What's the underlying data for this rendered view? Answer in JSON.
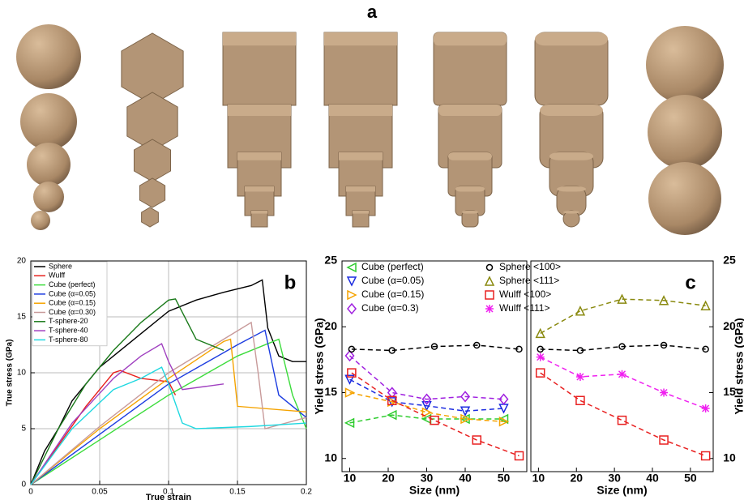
{
  "panel_a": {
    "label": "a"
  },
  "chart_data": [
    {
      "type": "line",
      "label": "b",
      "x_label": "True strain",
      "y_label": "True stress (GPa)",
      "xlim": [
        0,
        0.2
      ],
      "ylim": [
        0,
        20
      ],
      "xticks": [
        0,
        0.05,
        0.1,
        0.15,
        0.2
      ],
      "yticks": [
        0,
        5,
        10,
        15,
        20
      ],
      "grid": true,
      "legend": "upper-left",
      "series": [
        {
          "name": "Sphere",
          "color": "#000000",
          "x": [
            0,
            0.01,
            0.02,
            0.03,
            0.04,
            0.05,
            0.06,
            0.08,
            0.1,
            0.12,
            0.14,
            0.16,
            0.168,
            0.172,
            0.18,
            0.19,
            0.2
          ],
          "values": [
            0,
            3,
            5,
            7.5,
            9,
            10.5,
            11.5,
            13.5,
            15.5,
            16.5,
            17.2,
            17.8,
            18.3,
            14,
            11.5,
            11,
            11
          ]
        },
        {
          "name": "Wulff",
          "color": "#e8201c",
          "x": [
            0,
            0.02,
            0.04,
            0.06,
            0.065,
            0.08,
            0.1,
            0.105
          ],
          "values": [
            0,
            3.5,
            7,
            10,
            10.2,
            9.5,
            9.2,
            8
          ]
        },
        {
          "name": "Cube (perfect)",
          "color": "#3cdc3c",
          "x": [
            0,
            0.05,
            0.1,
            0.15,
            0.18,
            0.19,
            0.2
          ],
          "values": [
            0,
            4,
            8,
            11.5,
            13,
            8,
            5
          ]
        },
        {
          "name": "Cube (α=0.05)",
          "color": "#1c3ce0",
          "x": [
            0,
            0.05,
            0.1,
            0.15,
            0.17,
            0.18,
            0.2
          ],
          "values": [
            0,
            4.5,
            9,
            12.5,
            13.8,
            8,
            6
          ]
        },
        {
          "name": "Cube (α=0.15)",
          "color": "#f5a300",
          "x": [
            0,
            0.05,
            0.1,
            0.14,
            0.145,
            0.15,
            0.2
          ],
          "values": [
            0,
            5,
            9.5,
            12.8,
            13,
            7,
            6.5
          ]
        },
        {
          "name": "Cube (α=0.30)",
          "color": "#c89a9a",
          "x": [
            0,
            0.05,
            0.1,
            0.16,
            0.165,
            0.17,
            0.2
          ],
          "values": [
            0,
            5.2,
            10,
            14.5,
            10,
            5,
            6
          ]
        },
        {
          "name": "T-sphere-20",
          "color": "#1a7a1a",
          "x": [
            0,
            0.02,
            0.04,
            0.06,
            0.08,
            0.1,
            0.105,
            0.12,
            0.14
          ],
          "values": [
            0,
            5,
            9,
            12,
            14.5,
            16.5,
            16.6,
            13,
            12
          ]
        },
        {
          "name": "T-sphere-40",
          "color": "#a040c0",
          "x": [
            0,
            0.03,
            0.06,
            0.08,
            0.095,
            0.1,
            0.11,
            0.14
          ],
          "values": [
            0,
            5.5,
            9.5,
            11.5,
            12.6,
            11,
            8.5,
            9
          ]
        },
        {
          "name": "T-sphere-80",
          "color": "#20d8e0",
          "x": [
            0,
            0.03,
            0.06,
            0.08,
            0.095,
            0.1,
            0.11,
            0.12,
            0.16,
            0.2
          ],
          "values": [
            0,
            5,
            8.5,
            9.5,
            10.5,
            9,
            5.5,
            5,
            5.2,
            5.5
          ]
        }
      ]
    },
    {
      "type": "line",
      "x_label": "Size (nm)",
      "y_label": "Yield stress (GPa)",
      "y_side": "left",
      "xlim": [
        8,
        56
      ],
      "ylim": [
        9,
        25
      ],
      "xticks": [
        10,
        20,
        30,
        40,
        50
      ],
      "yticks": [
        10,
        15,
        20,
        25
      ],
      "linestyle": "dashed",
      "series": [
        {
          "name": "Cube (perfect)",
          "color": "#2ecc2e",
          "marker": "tri-left",
          "x": [
            10,
            21,
            30,
            40,
            50
          ],
          "values": [
            12.7,
            13.3,
            13,
            13,
            13
          ]
        },
        {
          "name": "Cube (α=0.05)",
          "color": "#1c2ce0",
          "marker": "tri-down",
          "x": [
            10,
            21,
            30,
            40,
            50
          ],
          "values": [
            16,
            14.3,
            14,
            13.6,
            13.8
          ]
        },
        {
          "name": "Cube (α=0.15)",
          "color": "#f5a300",
          "marker": "tri-right",
          "x": [
            10,
            21,
            30,
            40,
            50
          ],
          "values": [
            15,
            14.3,
            13.5,
            13,
            12.8
          ]
        },
        {
          "name": "Cube (α=0.3)",
          "color": "#a020e0",
          "marker": "diamond",
          "x": [
            10,
            21,
            30,
            40,
            50
          ],
          "values": [
            17.8,
            15,
            14.5,
            14.7,
            14.5
          ]
        },
        {
          "color": "#000000",
          "marker": "circle",
          "x": [
            10.5,
            21,
            32,
            43,
            54
          ],
          "values": [
            18.3,
            18.2,
            18.5,
            18.6,
            18.3
          ]
        },
        {
          "color": "#e82020",
          "marker": "square",
          "x": [
            10.5,
            21,
            32,
            43,
            54
          ],
          "values": [
            16.5,
            14.4,
            12.9,
            11.4,
            10.2
          ]
        }
      ]
    },
    {
      "type": "line",
      "label": "c",
      "x_label": "Size (nm)",
      "y_label": "Yield stress (GPa)",
      "y_side": "right",
      "xlim": [
        8,
        56
      ],
      "ylim": [
        9,
        25
      ],
      "xticks": [
        10,
        20,
        30,
        40,
        50
      ],
      "yticks": [
        10,
        15,
        20,
        25
      ],
      "linestyle": "dashed",
      "series": [
        {
          "name": "Sphere <100>",
          "color": "#000000",
          "marker": "circle",
          "x": [
            10.5,
            21,
            32,
            43,
            54
          ],
          "values": [
            18.3,
            18.2,
            18.5,
            18.6,
            18.3
          ]
        },
        {
          "name": "Sphere <111>",
          "color": "#8a8a10",
          "marker": "tri-up",
          "x": [
            10.5,
            21,
            32,
            43,
            54
          ],
          "values": [
            19.5,
            21.2,
            22.1,
            22,
            21.6
          ]
        },
        {
          "name": "Wulff <100>",
          "color": "#e82020",
          "marker": "square",
          "x": [
            10.5,
            21,
            32,
            43,
            54
          ],
          "values": [
            16.5,
            14.4,
            12.9,
            11.4,
            10.2
          ]
        },
        {
          "name": "Wulff <111>",
          "color": "#f020f0",
          "marker": "star",
          "x": [
            10.5,
            21,
            32,
            43,
            54
          ],
          "values": [
            17.7,
            16.2,
            16.4,
            15,
            13.8
          ]
        }
      ]
    }
  ]
}
